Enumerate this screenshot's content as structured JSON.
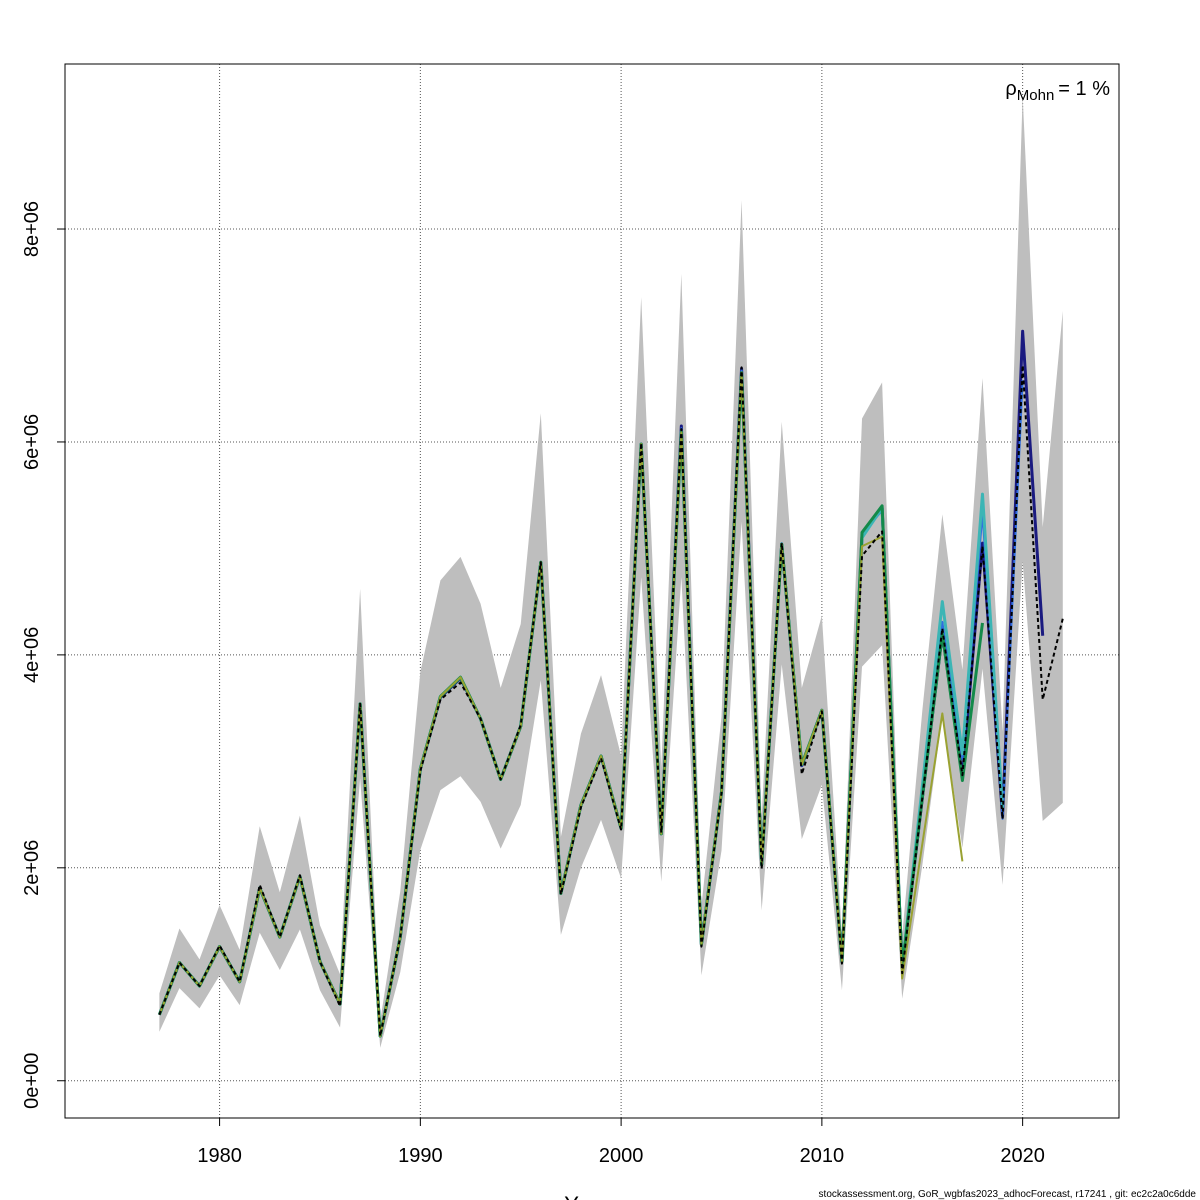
{
  "chart_data": {
    "type": "line",
    "title": "",
    "xlabel": "Years",
    "ylabel": "",
    "xlim": [
      1972.3,
      2024.8
    ],
    "ylim": [
      -350000,
      9550000
    ],
    "x_ticks": [
      1980,
      1990,
      2000,
      2010,
      2020
    ],
    "x_tick_labels": [
      "1980",
      "1990",
      "2000",
      "2010",
      "2020"
    ],
    "y_ticks": [
      0,
      2000000,
      4000000,
      6000000,
      8000000
    ],
    "y_tick_labels": [
      "0e+00",
      "2e+06",
      "4e+06",
      "6e+06",
      "8e+06"
    ],
    "grid": true,
    "annotation": {
      "rho_symbol": "ρ",
      "rho_subscript": "Mohn",
      "rho_value": "= 1 %"
    },
    "footer": "stockassessment.org, GoR_wgbfas2023_adhocForecast, r17241 , git: ec2c2a0c6dde",
    "colors": {
      "band": "#bebebe",
      "grid": "#555555",
      "base": "#000000"
    },
    "band": {
      "x": [
        1977,
        1978,
        1979,
        1980,
        1981,
        1982,
        1983,
        1984,
        1985,
        1986,
        1987,
        1988,
        1989,
        1990,
        1991,
        1992,
        1993,
        1994,
        1995,
        1996,
        1997,
        1998,
        1999,
        2000,
        2001,
        2002,
        2003,
        2004,
        2005,
        2006,
        2007,
        2008,
        2009,
        2010,
        2011,
        2012,
        2013,
        2014,
        2015,
        2016,
        2017,
        2018,
        2019,
        2020,
        2021,
        2022
      ],
      "upper": [
        820000,
        1430000,
        1140000,
        1650000,
        1230000,
        2390000,
        1770000,
        2490000,
        1460000,
        1000000,
        4620000,
        560000,
        1780000,
        3840000,
        4700000,
        4920000,
        4480000,
        3690000,
        4290000,
        6270000,
        2290000,
        3260000,
        3810000,
        3050000,
        7360000,
        2940000,
        7580000,
        1640000,
        3420000,
        8270000,
        2480000,
        6190000,
        3690000,
        4370000,
        1380000,
        6220000,
        6560000,
        1360000,
        3470000,
        5320000,
        3860000,
        6600000,
        3280000,
        9250000,
        5200000,
        7230000
      ],
      "lower": [
        460000,
        870000,
        680000,
        990000,
        710000,
        1390000,
        1040000,
        1420000,
        850000,
        500000,
        2840000,
        310000,
        1020000,
        2170000,
        2730000,
        2860000,
        2620000,
        2180000,
        2590000,
        3760000,
        1370000,
        2000000,
        2450000,
        1900000,
        4730000,
        1870000,
        4730000,
        990000,
        2160000,
        5250000,
        1600000,
        3910000,
        2270000,
        2780000,
        850000,
        3890000,
        4090000,
        770000,
        2020000,
        3430000,
        2190000,
        3870000,
        1840000,
        4880000,
        2440000,
        2610000
      ]
    },
    "series": [
      {
        "color": "#000000",
        "dashed": true,
        "width": 2,
        "x": [
          1977,
          1978,
          1979,
          1980,
          1981,
          1982,
          1983,
          1984,
          1985,
          1986,
          1987,
          1988,
          1989,
          1990,
          1991,
          1992,
          1993,
          1994,
          1995,
          1996,
          1997,
          1998,
          1999,
          2000,
          2001,
          2002,
          2003,
          2004,
          2005,
          2006,
          2007,
          2008,
          2009,
          2010,
          2011,
          2012,
          2013,
          2014,
          2015,
          2016,
          2017,
          2018,
          2019,
          2020,
          2021,
          2022
        ],
        "values": [
          620000,
          1110000,
          890000,
          1270000,
          930000,
          1840000,
          1350000,
          1930000,
          1120000,
          700000,
          3540000,
          420000,
          1350000,
          2910000,
          3580000,
          3740000,
          3400000,
          2830000,
          3340000,
          4870000,
          1750000,
          2570000,
          3030000,
          2360000,
          5990000,
          2330000,
          6120000,
          1260000,
          2700000,
          6700000,
          1990000,
          5050000,
          2880000,
          3470000,
          1100000,
          4930000,
          5160000,
          1010000,
          2650000,
          4250000,
          2870000,
          5020000,
          2460000,
          6720000,
          3580000,
          4340000
        ]
      },
      {
        "color": "#1a1a80",
        "dashed": false,
        "width": 3,
        "x": [
          1977,
          1978,
          1979,
          1980,
          1981,
          1982,
          1983,
          1984,
          1985,
          1986,
          1987,
          1988,
          1989,
          1990,
          1991,
          1992,
          1993,
          1994,
          1995,
          1996,
          1997,
          1998,
          1999,
          2000,
          2001,
          2002,
          2003,
          2004,
          2005,
          2006,
          2007,
          2008,
          2009,
          2010,
          2011,
          2012,
          2013,
          2014,
          2015,
          2016,
          2017,
          2018,
          2019,
          2020,
          2021
        ],
        "values": [
          620000,
          1110000,
          890000,
          1260000,
          930000,
          1810000,
          1350000,
          1920000,
          1120000,
          720000,
          3540000,
          420000,
          1350000,
          2930000,
          3600000,
          3780000,
          3400000,
          2830000,
          3330000,
          4870000,
          1760000,
          2590000,
          3050000,
          2370000,
          5980000,
          2320000,
          6150000,
          1280000,
          2710000,
          6690000,
          2030000,
          5040000,
          2960000,
          3480000,
          1120000,
          5120000,
          5380000,
          1060000,
          2650000,
          4200000,
          2860000,
          5050000,
          2480000,
          7040000,
          4180000
        ]
      },
      {
        "color": "#2f6ee0",
        "dashed": false,
        "width": 2,
        "x": [
          1977,
          1978,
          1979,
          1980,
          1981,
          1982,
          1983,
          1984,
          1985,
          1986,
          1987,
          1988,
          1989,
          1990,
          1991,
          1992,
          1993,
          1994,
          1995,
          1996,
          1997,
          1998,
          1999,
          2000,
          2001,
          2002,
          2003,
          2004,
          2005,
          2006,
          2007,
          2008,
          2009,
          2010,
          2011,
          2012,
          2013,
          2014,
          2015,
          2016,
          2017,
          2018,
          2019,
          2020
        ],
        "values": [
          620000,
          1110000,
          890000,
          1260000,
          930000,
          1810000,
          1350000,
          1920000,
          1120000,
          720000,
          3540000,
          420000,
          1350000,
          2930000,
          3610000,
          3780000,
          3400000,
          2830000,
          3330000,
          4870000,
          1760000,
          2590000,
          3050000,
          2370000,
          5980000,
          2320000,
          6130000,
          1280000,
          2710000,
          6680000,
          2030000,
          5050000,
          2960000,
          3480000,
          1120000,
          5120000,
          5360000,
          1060000,
          2660000,
          4310000,
          3020000,
          5330000,
          2460000,
          6580000
        ]
      },
      {
        "color": "#3cb5b5",
        "dashed": false,
        "width": 3,
        "x": [
          1977,
          1978,
          1979,
          1980,
          1981,
          1982,
          1983,
          1984,
          1985,
          1986,
          1987,
          1988,
          1989,
          1990,
          1991,
          1992,
          1993,
          1994,
          1995,
          1996,
          1997,
          1998,
          1999,
          2000,
          2001,
          2002,
          2003,
          2004,
          2005,
          2006,
          2007,
          2008,
          2009,
          2010,
          2011,
          2012,
          2013,
          2014,
          2015,
          2016,
          2017,
          2018,
          2019
        ],
        "values": [
          620000,
          1110000,
          890000,
          1260000,
          930000,
          1810000,
          1350000,
          1920000,
          1120000,
          720000,
          3540000,
          420000,
          1350000,
          2930000,
          3610000,
          3790000,
          3400000,
          2830000,
          3330000,
          4870000,
          1760000,
          2590000,
          3050000,
          2370000,
          5980000,
          2320000,
          6100000,
          1280000,
          2710000,
          6650000,
          2030000,
          5040000,
          2970000,
          3480000,
          1120000,
          5100000,
          5380000,
          1070000,
          2760000,
          4500000,
          3070000,
          5510000,
          2560000
        ]
      },
      {
        "color": "#148a4a",
        "dashed": false,
        "width": 3,
        "x": [
          1977,
          1978,
          1979,
          1980,
          1981,
          1982,
          1983,
          1984,
          1985,
          1986,
          1987,
          1988,
          1989,
          1990,
          1991,
          1992,
          1993,
          1994,
          1995,
          1996,
          1997,
          1998,
          1999,
          2000,
          2001,
          2002,
          2003,
          2004,
          2005,
          2006,
          2007,
          2008,
          2009,
          2010,
          2011,
          2012,
          2013,
          2014,
          2015,
          2016,
          2017,
          2018
        ],
        "values": [
          620000,
          1110000,
          890000,
          1260000,
          930000,
          1810000,
          1350000,
          1920000,
          1120000,
          720000,
          3540000,
          420000,
          1350000,
          2930000,
          3610000,
          3790000,
          3400000,
          2830000,
          3330000,
          4870000,
          1760000,
          2590000,
          3050000,
          2370000,
          5980000,
          2320000,
          6090000,
          1280000,
          2710000,
          6650000,
          2030000,
          5040000,
          2970000,
          3480000,
          1120000,
          5150000,
          5400000,
          1060000,
          2650000,
          4200000,
          2820000,
          4300000
        ]
      },
      {
        "color": "#9aa232",
        "dashed": false,
        "width": 2,
        "x": [
          1977,
          1978,
          1979,
          1980,
          1981,
          1982,
          1983,
          1984,
          1985,
          1986,
          1987,
          1988,
          1989,
          1990,
          1991,
          1992,
          1993,
          1994,
          1995,
          1996,
          1997,
          1998,
          1999,
          2000,
          2001,
          2002,
          2003,
          2004,
          2005,
          2006,
          2007,
          2008,
          2009,
          2010,
          2011,
          2012,
          2013,
          2014,
          2015,
          2016,
          2017
        ],
        "values": [
          620000,
          1110000,
          890000,
          1260000,
          930000,
          1810000,
          1350000,
          1920000,
          1120000,
          720000,
          3540000,
          420000,
          1350000,
          2930000,
          3610000,
          3790000,
          3400000,
          2830000,
          3330000,
          4870000,
          1760000,
          2590000,
          3050000,
          2370000,
          5980000,
          2320000,
          6090000,
          1280000,
          2710000,
          6650000,
          2030000,
          5040000,
          2970000,
          3480000,
          1120000,
          5020000,
          5110000,
          960000,
          2220000,
          3450000,
          2060000
        ]
      }
    ]
  }
}
